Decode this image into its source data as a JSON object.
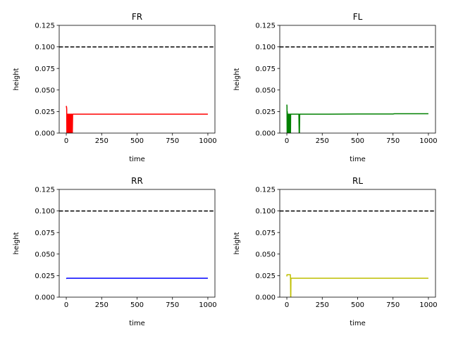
{
  "chart_data": [
    {
      "type": "line",
      "title": "FR",
      "xlabel": "time",
      "ylabel": "height",
      "xlim": [
        -50,
        1050
      ],
      "ylim": [
        0.0,
        0.125
      ],
      "xticks": [
        0,
        250,
        500,
        750,
        1000
      ],
      "yticks": [
        0.0,
        0.025,
        0.05,
        0.075,
        0.1,
        0.125
      ],
      "xtick_labels": [
        "0",
        "250",
        "500",
        "750",
        "1000"
      ],
      "ytick_labels": [
        "0.000",
        "0.025",
        "0.050",
        "0.075",
        "0.100",
        "0.125"
      ],
      "reference_line": {
        "y": 0.1,
        "style": "dashed",
        "color": "#000000"
      },
      "grid": false,
      "series": [
        {
          "color": "#ff0000",
          "x": [
            0,
            1,
            2,
            3,
            4,
            5,
            8,
            10,
            13,
            15,
            18,
            20,
            23,
            25,
            28,
            30,
            33,
            35,
            38,
            40,
            43,
            45,
            50,
            100,
            200,
            300,
            400,
            500,
            600,
            700,
            800,
            900,
            1000
          ],
          "y": [
            0.03,
            0.031,
            0.03,
            0.028,
            0.0,
            0.022,
            0.022,
            0.0,
            0.0,
            0.022,
            0.022,
            0.0,
            0.0,
            0.022,
            0.022,
            0.0,
            0.0,
            0.022,
            0.022,
            0.0,
            0.0,
            0.022,
            0.022,
            0.022,
            0.022,
            0.022,
            0.022,
            0.022,
            0.022,
            0.022,
            0.022,
            0.022,
            0.022
          ]
        }
      ]
    },
    {
      "type": "line",
      "title": "FL",
      "xlabel": "time",
      "ylabel": "height",
      "xlim": [
        -50,
        1050
      ],
      "ylim": [
        0.0,
        0.125
      ],
      "xticks": [
        0,
        250,
        500,
        750,
        1000
      ],
      "yticks": [
        0.0,
        0.025,
        0.05,
        0.075,
        0.1,
        0.125
      ],
      "xtick_labels": [
        "0",
        "250",
        "500",
        "750",
        "1000"
      ],
      "ytick_labels": [
        "0.000",
        "0.025",
        "0.050",
        "0.075",
        "0.100",
        "0.125"
      ],
      "reference_line": {
        "y": 0.1,
        "style": "dashed",
        "color": "#000000"
      },
      "grid": false,
      "series": [
        {
          "color": "#008000",
          "x": [
            0,
            1,
            2,
            3,
            4,
            6,
            7,
            10,
            11,
            14,
            15,
            18,
            19,
            22,
            23,
            26,
            27,
            30,
            85,
            87,
            89,
            91,
            300,
            500,
            750,
            760,
            1000
          ],
          "y": [
            0.033,
            0.031,
            0.0,
            0.025,
            0.022,
            0.022,
            0.0,
            0.0,
            0.022,
            0.022,
            0.0,
            0.0,
            0.022,
            0.022,
            0.0,
            0.0,
            0.022,
            0.022,
            0.022,
            0.0,
            0.0,
            0.022,
            0.022,
            0.0222,
            0.0222,
            0.0225,
            0.0225
          ]
        }
      ]
    },
    {
      "type": "line",
      "title": "RR",
      "xlabel": "time",
      "ylabel": "height",
      "xlim": [
        -50,
        1050
      ],
      "ylim": [
        0.0,
        0.125
      ],
      "xticks": [
        0,
        250,
        500,
        750,
        1000
      ],
      "yticks": [
        0.0,
        0.025,
        0.05,
        0.075,
        0.1,
        0.125
      ],
      "xtick_labels": [
        "0",
        "250",
        "500",
        "750",
        "1000"
      ],
      "ytick_labels": [
        "0.000",
        "0.025",
        "0.050",
        "0.075",
        "0.100",
        "0.125"
      ],
      "reference_line": {
        "y": 0.1,
        "style": "dashed",
        "color": "#000000"
      },
      "grid": false,
      "series": [
        {
          "color": "#0000ff",
          "x": [
            0,
            5,
            10,
            1000
          ],
          "y": [
            0.0215,
            0.022,
            0.022,
            0.022
          ]
        }
      ]
    },
    {
      "type": "line",
      "title": "RL",
      "xlabel": "time",
      "ylabel": "height",
      "xlim": [
        -50,
        1050
      ],
      "ylim": [
        0.0,
        0.125
      ],
      "xticks": [
        0,
        250,
        500,
        750,
        1000
      ],
      "yticks": [
        0.0,
        0.025,
        0.05,
        0.075,
        0.1,
        0.125
      ],
      "xtick_labels": [
        "0",
        "250",
        "500",
        "750",
        "1000"
      ],
      "ytick_labels": [
        "0.000",
        "0.025",
        "0.050",
        "0.075",
        "0.100",
        "0.125"
      ],
      "reference_line": {
        "y": 0.1,
        "style": "dashed",
        "color": "#000000"
      },
      "grid": false,
      "series": [
        {
          "color": "#bfbf00",
          "x": [
            0,
            1,
            25,
            26,
            27,
            28,
            29,
            30,
            35,
            40,
            1000
          ],
          "y": [
            0.024,
            0.026,
            0.026,
            0.021,
            0.0,
            0.0,
            0.021,
            0.022,
            0.022,
            0.022,
            0.022
          ]
        }
      ]
    }
  ]
}
